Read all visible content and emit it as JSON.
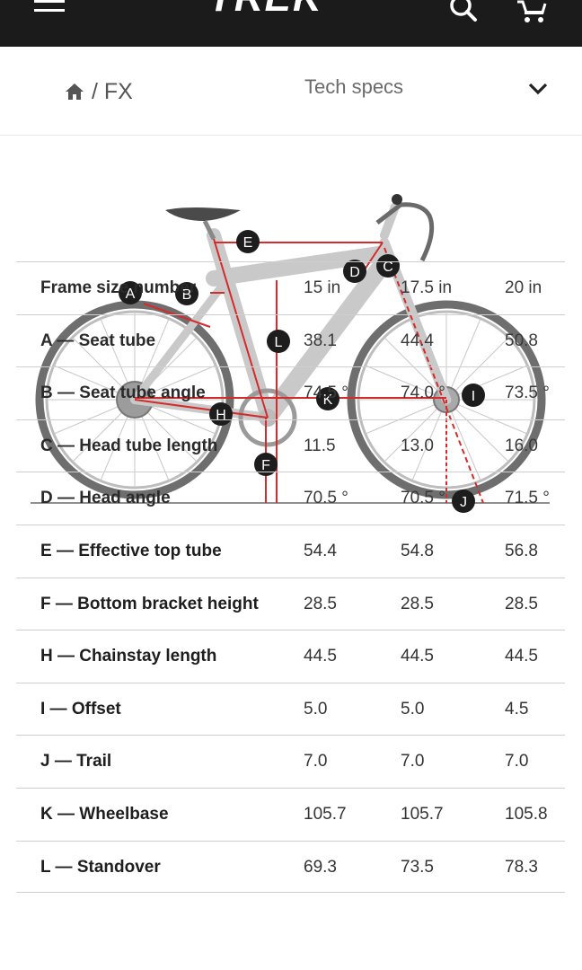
{
  "header": {
    "logo_text": "TREK",
    "menu_icon": "hamburger-menu-icon",
    "search_icon": "search-icon",
    "cart_icon": "cart-icon",
    "background": "#1b1b1b"
  },
  "breadcrumb": {
    "home_icon": "home-icon",
    "text": "/ FX"
  },
  "section": {
    "title": "Tech specs",
    "toggle_icon": "chevron-down-icon"
  },
  "diagram": {
    "markers": [
      "A",
      "B",
      "C",
      "D",
      "E",
      "F",
      "H",
      "I",
      "J",
      "K",
      "L"
    ],
    "accent_color": "#d52b2b"
  },
  "specs": {
    "rows": [
      {
        "label": "Frame size number",
        "values": [
          "15 in",
          "17.5 in",
          "20 in"
        ]
      },
      {
        "label": "A — Seat tube",
        "values": [
          "38.1",
          "44.4",
          "50.8"
        ]
      },
      {
        "label": "B — Seat tube angle",
        "values": [
          "74.5 °",
          "74.0 °",
          "73.5 °"
        ]
      },
      {
        "label": "C — Head tube length",
        "values": [
          "11.5",
          "13.0",
          "16.0"
        ]
      },
      {
        "label": "D — Head angle",
        "values": [
          "70.5 °",
          "70.5 °",
          "71.5 °"
        ]
      },
      {
        "label": "E — Effective top tube",
        "values": [
          "54.4",
          "54.8",
          "56.8"
        ]
      },
      {
        "label": "F — Bottom bracket height",
        "values": [
          "28.5",
          "28.5",
          "28.5"
        ]
      },
      {
        "label": "H — Chainstay length",
        "values": [
          "44.5",
          "44.5",
          "44.5"
        ]
      },
      {
        "label": "I — Offset",
        "values": [
          "5.0",
          "5.0",
          "4.5"
        ]
      },
      {
        "label": "J — Trail",
        "values": [
          "7.0",
          "7.0",
          "7.0"
        ]
      },
      {
        "label": "K — Wheelbase",
        "values": [
          "105.7",
          "105.7",
          "105.8"
        ]
      },
      {
        "label": "L — Standover",
        "values": [
          "69.3",
          "73.5",
          "78.3"
        ]
      }
    ]
  }
}
